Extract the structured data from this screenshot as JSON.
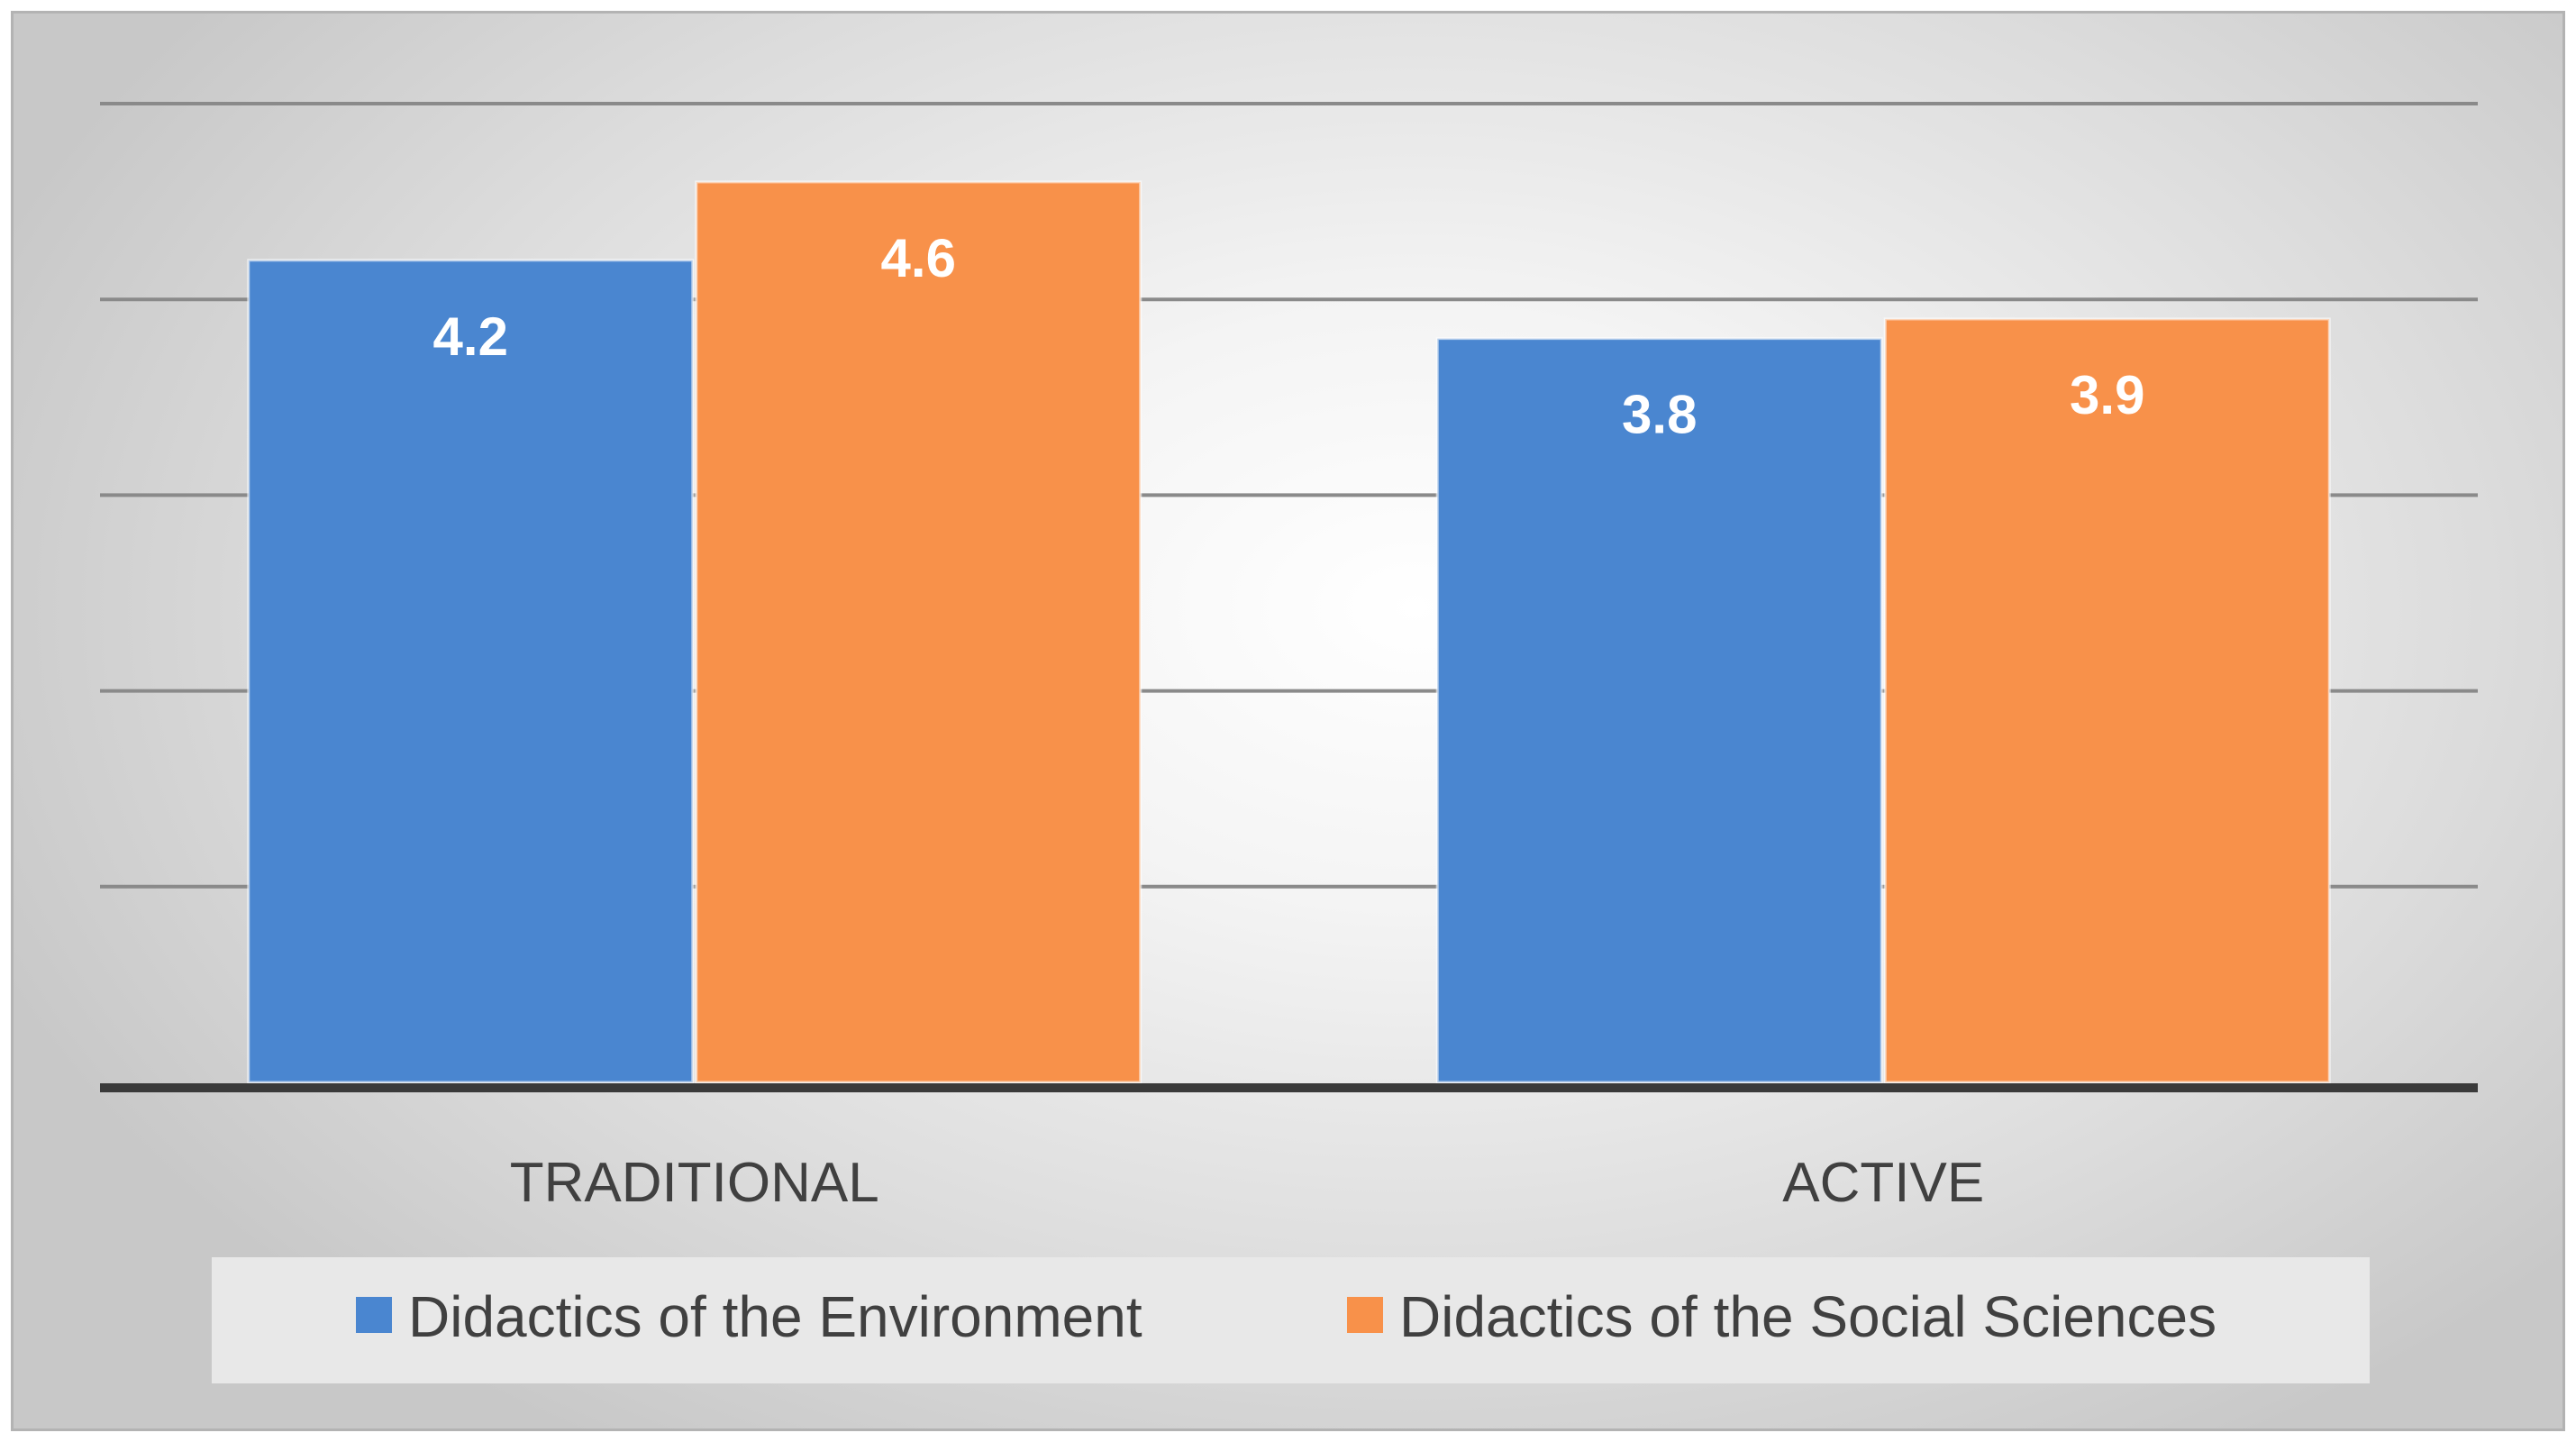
{
  "chart_data": {
    "type": "bar",
    "title": "",
    "xlabel": "",
    "ylabel": "",
    "categories": [
      "TRADITIONAL",
      "ACTIVE"
    ],
    "series": [
      {
        "name": "Didactics of the Environment",
        "values": [
          4.2,
          3.8
        ],
        "color": "#4a86d0"
      },
      {
        "name": "Didactics of the Social Sciences",
        "values": [
          4.6,
          3.9
        ],
        "color": "#f8914a"
      }
    ],
    "ylim": [
      0,
      5
    ],
    "ytick_step": 1,
    "grid": true,
    "legend_position": "bottom",
    "show_y_tick_labels": false
  }
}
